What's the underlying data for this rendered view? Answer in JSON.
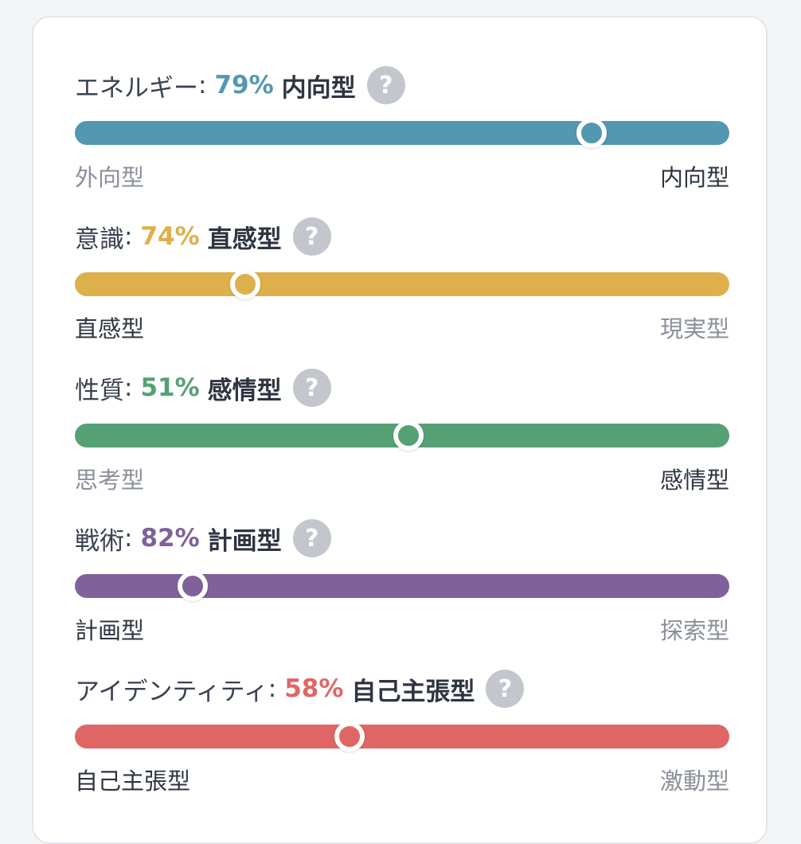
{
  "traits": [
    {
      "name": "エネルギー",
      "percent": "79%",
      "type": "内向型",
      "value": 0.79,
      "side": "right",
      "color": "#5397b0",
      "left_label": "外向型",
      "right_label": "内向型",
      "help_icon": "question-circle-icon"
    },
    {
      "name": "意識",
      "percent": "74%",
      "type": "直感型",
      "value": 0.74,
      "side": "left",
      "color": "#ddb04c",
      "left_label": "直感型",
      "right_label": "現実型",
      "help_icon": "question-circle-icon"
    },
    {
      "name": "性質",
      "percent": "51%",
      "type": "感情型",
      "value": 0.51,
      "side": "right",
      "color": "#55a175",
      "left_label": "思考型",
      "right_label": "感情型",
      "help_icon": "question-circle-icon"
    },
    {
      "name": "戦術",
      "percent": "82%",
      "type": "計画型",
      "value": 0.82,
      "side": "left",
      "color": "#80619a",
      "left_label": "計画型",
      "right_label": "探索型",
      "help_icon": "question-circle-icon"
    },
    {
      "name": "アイデンティティ",
      "percent": "58%",
      "type": "自己主張型",
      "value": 0.58,
      "side": "left",
      "color": "#e06666",
      "left_label": "自己主張型",
      "right_label": "激動型",
      "help_icon": "question-circle-icon"
    }
  ]
}
